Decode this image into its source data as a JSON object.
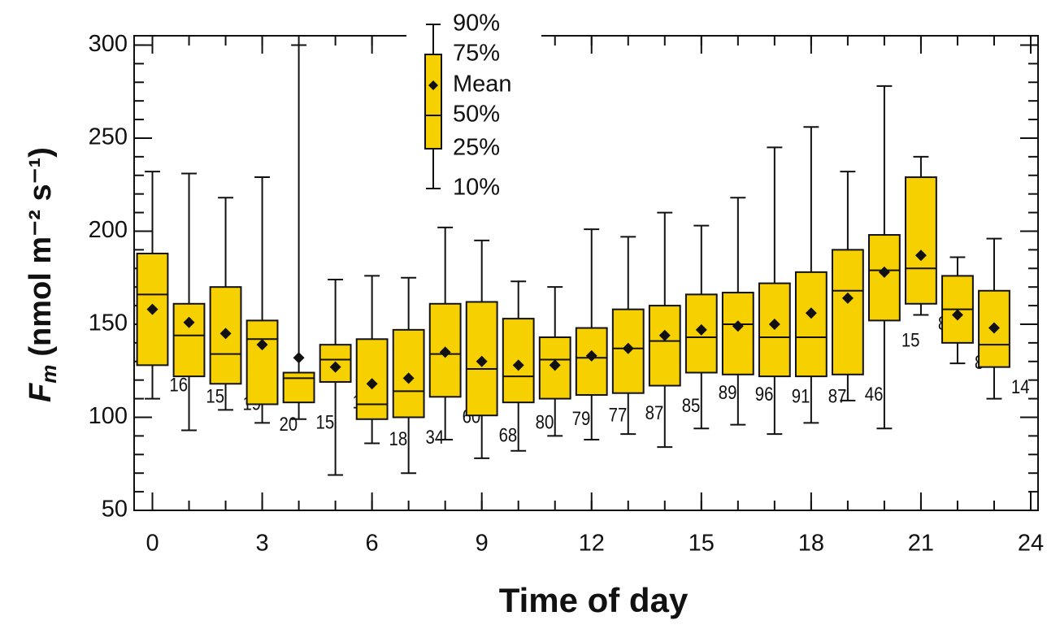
{
  "chart_data": {
    "type": "box",
    "xlabel": "Time of day",
    "ylabel": {
      "symbol": "F",
      "subscript": "m",
      "units": "(nmol m⁻² s⁻¹)"
    },
    "x": [
      0,
      1,
      2,
      3,
      4,
      5,
      6,
      7,
      8,
      9,
      10,
      11,
      12,
      13,
      14,
      15,
      16,
      17,
      18,
      19,
      20,
      21,
      22,
      23
    ],
    "whisker_high": [
      232,
      231,
      218,
      229,
      300,
      174,
      176,
      175,
      202,
      195,
      173,
      170,
      201,
      197,
      210,
      203,
      218,
      245,
      256,
      232,
      278,
      240,
      186,
      196
    ],
    "q3": [
      188,
      161,
      170,
      152,
      124,
      139,
      142,
      147,
      161,
      162,
      153,
      143,
      148,
      158,
      160,
      166,
      167,
      172,
      178,
      190,
      198,
      229,
      176,
      168
    ],
    "median": [
      166,
      144,
      134,
      142,
      121,
      131,
      107,
      114,
      134,
      126,
      122,
      131,
      132,
      137,
      141,
      143,
      150,
      143,
      143,
      168,
      179,
      180,
      158,
      139
    ],
    "q1": [
      128,
      122,
      118,
      107,
      108,
      119,
      99,
      100,
      111,
      101,
      108,
      110,
      112,
      113,
      117,
      124,
      123,
      122,
      122,
      123,
      152,
      161,
      140,
      127
    ],
    "whisker_low": [
      110,
      93,
      104,
      97,
      99,
      69,
      86,
      70,
      88,
      78,
      82,
      90,
      88,
      91,
      84,
      94,
      96,
      91,
      97,
      109,
      94,
      155,
      129,
      110
    ],
    "mean": [
      158,
      151,
      145,
      139,
      132,
      127,
      118,
      121,
      135,
      130,
      128,
      128,
      133,
      137,
      144,
      147,
      149,
      150,
      156,
      164,
      178,
      187,
      155,
      148
    ],
    "n": [
      16,
      15,
      19,
      20,
      15,
      11,
      18,
      34,
      60,
      68,
      80,
      79,
      77,
      87,
      85,
      89,
      96,
      91,
      87,
      46,
      15,
      8,
      8,
      14
    ],
    "color": "#f7d000",
    "xlim": [
      -0.5,
      24.2
    ],
    "ylim": [
      50,
      305
    ],
    "xticks": [
      0,
      3,
      6,
      9,
      12,
      15,
      18,
      21,
      24
    ],
    "yticks": [
      50,
      100,
      150,
      200,
      250,
      300
    ],
    "xminor": 1,
    "yminor": 10,
    "legend": {
      "whisker_high": "90%",
      "q3": "75%",
      "mean": "Mean",
      "median": "50%",
      "q1": "25%",
      "whisker_low": "10%"
    }
  }
}
